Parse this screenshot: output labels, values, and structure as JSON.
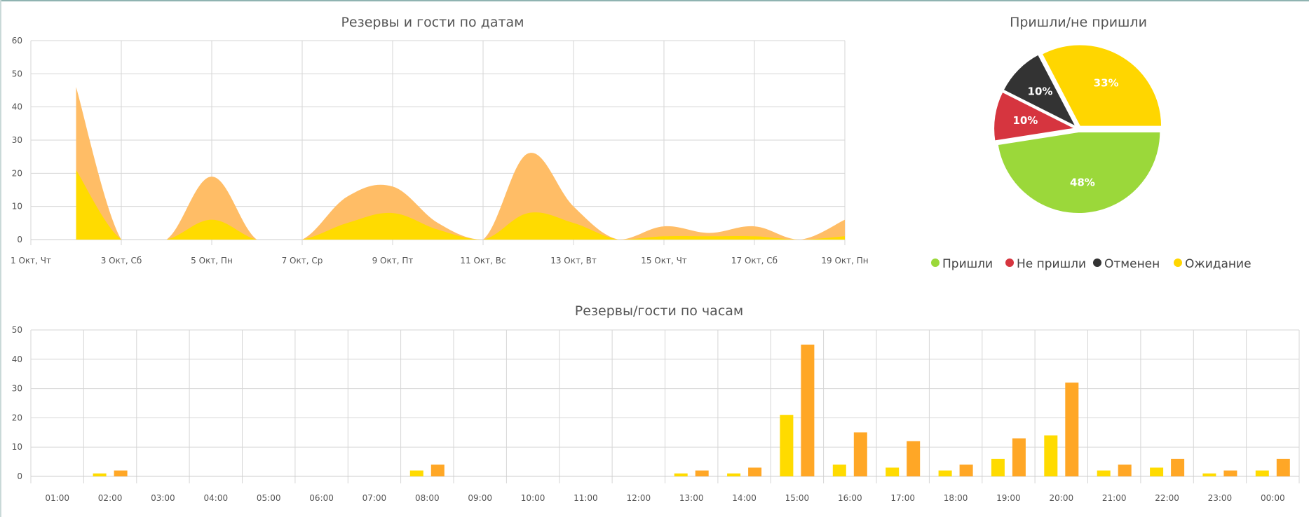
{
  "colors": {
    "guests": "#ffbd66",
    "reservations": "#ffdb00",
    "bar_guests": "#ffa726",
    "bar_reservations": "#ffdb00",
    "came": "#9bd83a",
    "no_show": "#d6353f",
    "cancelled": "#333333",
    "waiting": "#ffd600",
    "grid": "#d6d6d6"
  },
  "chart_data": [
    {
      "type": "area",
      "title": "Резервы и гости по датам",
      "xlabel": "",
      "ylabel": "",
      "ylim": [
        0,
        60
      ],
      "yticks": [
        0,
        10,
        20,
        30,
        40,
        50,
        60
      ],
      "x": [
        "1 Окт",
        "2 Окт",
        "3 Окт",
        "4 Окт",
        "5 Окт",
        "6 Окт",
        "7 Окт",
        "8 Окт",
        "9 Окт",
        "10 Окт",
        "11 Окт",
        "12 Окт",
        "13 Окт",
        "14 Окт",
        "15 Окт",
        "16 Окт",
        "17 Окт",
        "18 Окт",
        "19 Окт"
      ],
      "x_tick_labels": [
        "1 Окт, Чт",
        "3 Окт, Сб",
        "5 Окт, Пн",
        "7 Окт, Ср",
        "9 Окт, Пт",
        "11 Окт, Вс",
        "13 Окт, Вт",
        "15 Окт, Чт",
        "17 Окт, Сб",
        "19 Окт, Пн"
      ],
      "stacked": true,
      "grid": true,
      "series": [
        {
          "values": [
            null,
            21,
            0,
            0,
            6,
            0,
            0,
            5,
            8,
            3,
            0,
            8,
            5,
            0,
            1,
            1,
            1,
            0,
            1
          ]
        },
        {
          "values": [
            null,
            25,
            0,
            0,
            13,
            0,
            0,
            8,
            8,
            2,
            0,
            18,
            5,
            0,
            3,
            1,
            3,
            0,
            5
          ]
        }
      ]
    },
    {
      "type": "pie",
      "title": "Пришли/не пришли",
      "legend_position": "bottom",
      "slices": [
        {
          "label": "Пришли",
          "value": 48,
          "display": "48%"
        },
        {
          "label": "Не пришли",
          "value": 10,
          "display": "10%"
        },
        {
          "label": "Отменен",
          "value": 10,
          "display": "10%"
        },
        {
          "label": "Ожидание",
          "value": 33,
          "display": "33%"
        }
      ]
    },
    {
      "type": "bar",
      "title": "Резервы/гости по часам",
      "xlabel": "",
      "ylabel": "",
      "ylim": [
        0,
        50
      ],
      "yticks": [
        0,
        10,
        20,
        30,
        40,
        50
      ],
      "grid": true,
      "categories": [
        "01:00",
        "02:00",
        "03:00",
        "04:00",
        "05:00",
        "06:00",
        "07:00",
        "08:00",
        "09:00",
        "10:00",
        "11:00",
        "12:00",
        "13:00",
        "14:00",
        "15:00",
        "16:00",
        "17:00",
        "18:00",
        "19:00",
        "20:00",
        "21:00",
        "22:00",
        "23:00",
        "00:00"
      ],
      "series": [
        {
          "values": [
            0,
            1,
            0,
            0,
            0,
            0,
            0,
            2,
            0,
            0,
            0,
            0,
            1,
            1,
            21,
            4,
            3,
            2,
            6,
            14,
            2,
            3,
            1,
            2
          ]
        },
        {
          "values": [
            0,
            2,
            0,
            0,
            0,
            0,
            0,
            4,
            0,
            0,
            0,
            0,
            2,
            3,
            45,
            15,
            12,
            4,
            13,
            32,
            4,
            6,
            2,
            6
          ]
        }
      ]
    }
  ]
}
